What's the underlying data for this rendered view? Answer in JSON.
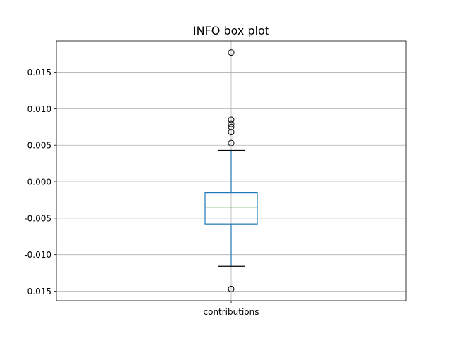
{
  "chart_data": {
    "type": "box",
    "title": "INFO box plot",
    "xlabel": "",
    "ylabel": "",
    "categories": [
      "contributions"
    ],
    "ylim": [
      -0.0163,
      0.0193
    ],
    "yticks": [
      "-0.015",
      "-0.010",
      "-0.005",
      "0.000",
      "0.005",
      "0.010",
      "0.015"
    ],
    "ytick_values": [
      -0.015,
      -0.01,
      -0.005,
      0.0,
      0.005,
      0.01,
      0.015
    ],
    "grid": true,
    "boxes": [
      {
        "name": "contributions",
        "whisker_low": -0.0116,
        "q1": -0.0058,
        "median": -0.0036,
        "q3": -0.0015,
        "whisker_high": 0.0043,
        "outliers": [
          0.0177,
          0.0085,
          0.0079,
          0.0075,
          0.0068,
          0.0053,
          -0.0147
        ]
      }
    ],
    "colors": {
      "box": "#1f77b4",
      "median": "#2ca02c",
      "whisker_cap": "#000000",
      "grid": "#b0b0b0",
      "axes": "#000000"
    }
  }
}
